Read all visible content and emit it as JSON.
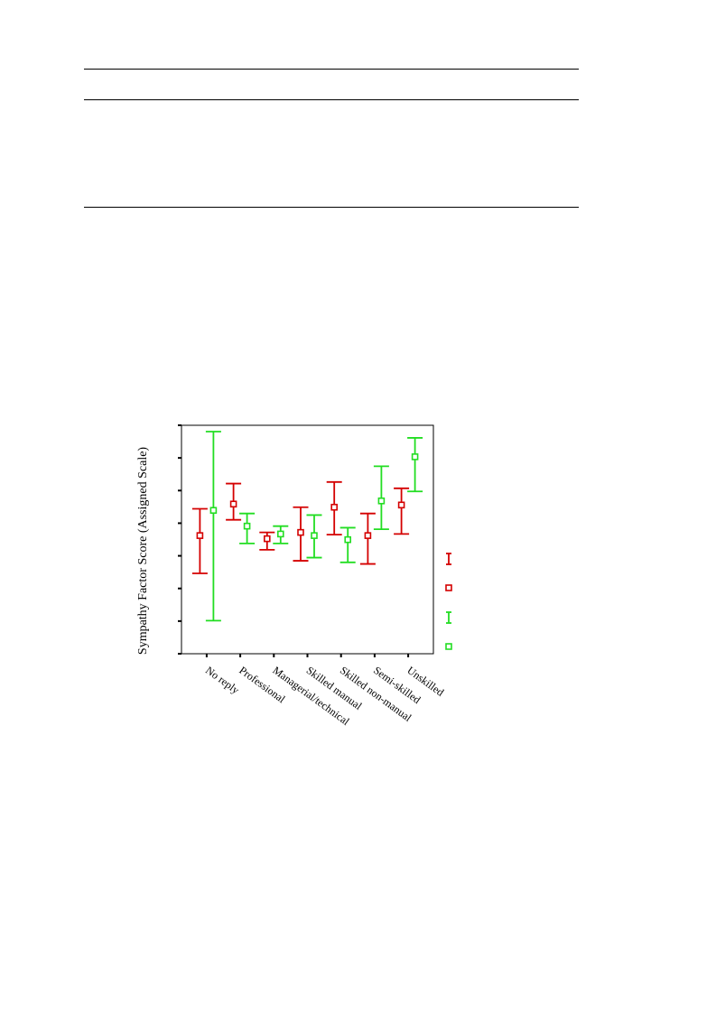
{
  "chart_data": {
    "type": "error-bar",
    "ylabel": "Sympathy Factor Score (Assigned Scale)",
    "categories": [
      "No reply",
      "Professional",
      "Managerial/technical",
      "Skilled manual",
      "Skilled non-manual",
      "Semi-skilled",
      "Unskilled"
    ],
    "y_tick_count": 8,
    "grid": false,
    "legend_position": "right",
    "series": [
      {
        "color": "#d40000",
        "mean": [
          3.75,
          4.75,
          3.65,
          3.85,
          4.65,
          3.75,
          4.72
        ],
        "lower": [
          2.55,
          4.25,
          3.3,
          2.95,
          3.78,
          2.85,
          3.8
        ],
        "upper": [
          4.6,
          5.4,
          3.85,
          4.65,
          5.45,
          4.45,
          5.25
        ]
      },
      {
        "color": "#22dd22",
        "mean": [
          4.55,
          4.05,
          3.8,
          3.75,
          3.62,
          4.85,
          6.25
        ],
        "lower": [
          1.05,
          3.5,
          3.5,
          3.05,
          2.9,
          3.95,
          5.15
        ],
        "upper": [
          7.05,
          4.45,
          4.05,
          4.4,
          4.0,
          5.95,
          6.85
        ]
      }
    ],
    "ylim": [
      0,
      7.25
    ]
  },
  "colors": {
    "series1": "#d40000",
    "series2": "#22dd22",
    "axis": "#000000"
  }
}
